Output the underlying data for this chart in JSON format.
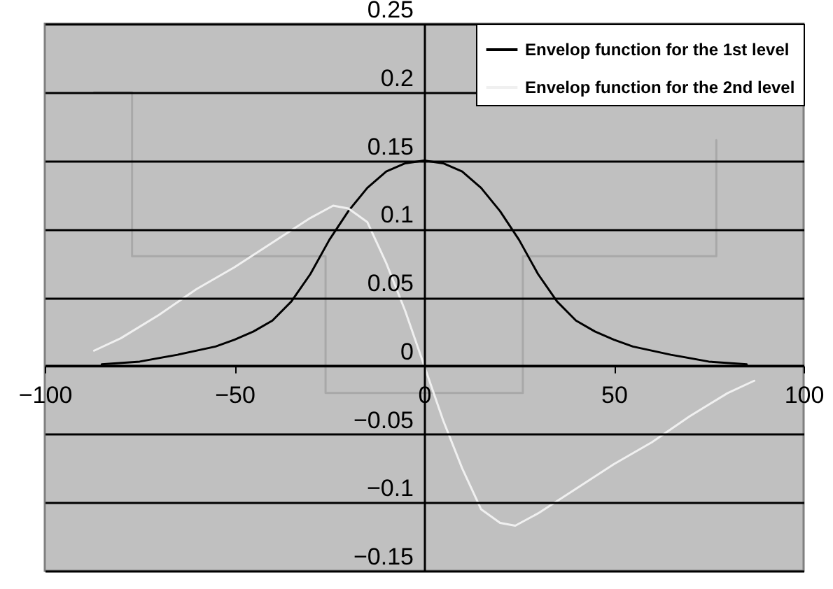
{
  "chart_data": {
    "type": "line",
    "xlim": [
      -100,
      100
    ],
    "xticks": [
      -100,
      -50,
      0,
      50,
      100
    ],
    "ylim": [
      -0.15,
      0.25
    ],
    "yticks": [
      -0.15,
      -0.1,
      -0.05,
      0,
      0.05,
      0.1,
      0.15,
      0.2,
      0.25
    ],
    "grid": "y",
    "legend": "top right",
    "series": [
      {
        "name": "Envelop function for the 1st level",
        "color": "#000000",
        "x": [
          -85,
          -75,
          -65,
          -55,
          -50,
          -45,
          -40,
          -35,
          -30,
          -25,
          -20,
          -15,
          -10,
          -5,
          0,
          5,
          10,
          15,
          20,
          25,
          30,
          35,
          40,
          45,
          50,
          55,
          65,
          75,
          85
        ],
        "values": [
          0.001,
          0.003,
          0.008,
          0.014,
          0.019,
          0.025,
          0.033,
          0.047,
          0.067,
          0.092,
          0.113,
          0.13,
          0.142,
          0.148,
          0.15,
          0.148,
          0.142,
          0.13,
          0.113,
          0.092,
          0.067,
          0.047,
          0.033,
          0.025,
          0.019,
          0.014,
          0.008,
          0.003,
          0.001
        ]
      },
      {
        "name": "Envelop function for the 2nd level",
        "color": "#f0f0f0",
        "x": [
          -87,
          -80,
          -70,
          -60,
          -50,
          -40,
          -30,
          -24,
          -20,
          -15,
          -10,
          -5,
          0,
          5,
          10,
          15,
          20,
          24,
          30,
          40,
          50,
          60,
          70,
          80,
          87
        ],
        "values": [
          0.011,
          0.02,
          0.037,
          0.056,
          0.072,
          0.09,
          0.108,
          0.117,
          0.115,
          0.105,
          0.075,
          0.04,
          0,
          -0.04,
          -0.075,
          -0.105,
          -0.115,
          -0.117,
          -0.108,
          -0.09,
          -0.072,
          -0.056,
          -0.037,
          -0.02,
          -0.011
        ]
      },
      {
        "color": "#a8a8a8",
        "x": [
          -87,
          -77,
          -77,
          -26,
          -26,
          26,
          26,
          77,
          77
        ],
        "values": [
          0.2,
          0.2,
          0.08,
          0.08,
          -0.02,
          -0.02,
          0.08,
          0.08,
          0.165
        ]
      }
    ]
  }
}
